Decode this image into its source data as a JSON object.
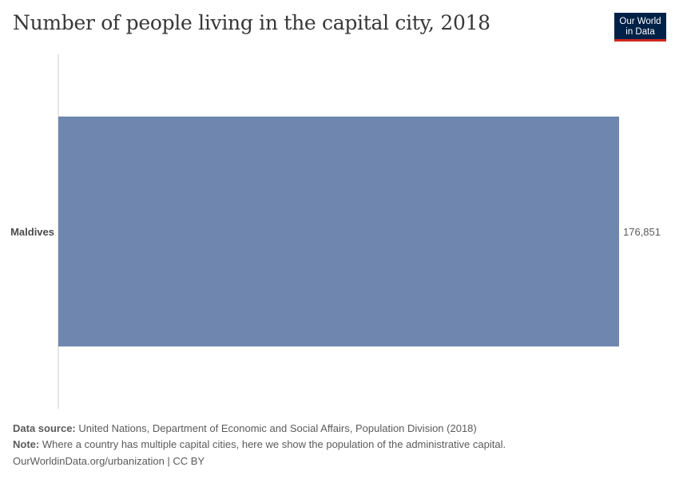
{
  "header": {
    "title": "Number of people living in the capital city, 2018",
    "logo_line1": "Our World",
    "logo_line2": "in Data"
  },
  "chart_data": {
    "type": "bar",
    "orientation": "horizontal",
    "categories": [
      "Maldives"
    ],
    "values": [
      176851
    ],
    "value_labels": [
      "176,851"
    ],
    "title": "Number of people living in the capital city, 2018",
    "xlim": [
      0,
      176851
    ],
    "grid": false,
    "bar_color": "#6f87af"
  },
  "footer": {
    "source_label": "Data source:",
    "source_text": "United Nations, Department of Economic and Social Affairs, Population Division (2018)",
    "note_label": "Note:",
    "note_text": "Where a country has multiple capital cities, here we show the population of the administrative capital.",
    "url_text": "OurWorldinData.org/urbanization | CC BY"
  },
  "colors": {
    "bar": "#6f87af",
    "axis": "#cccccc",
    "title": "#373737",
    "text": "#5b5b5b",
    "logo_bg": "#002147",
    "logo_accent": "#ce261e"
  }
}
